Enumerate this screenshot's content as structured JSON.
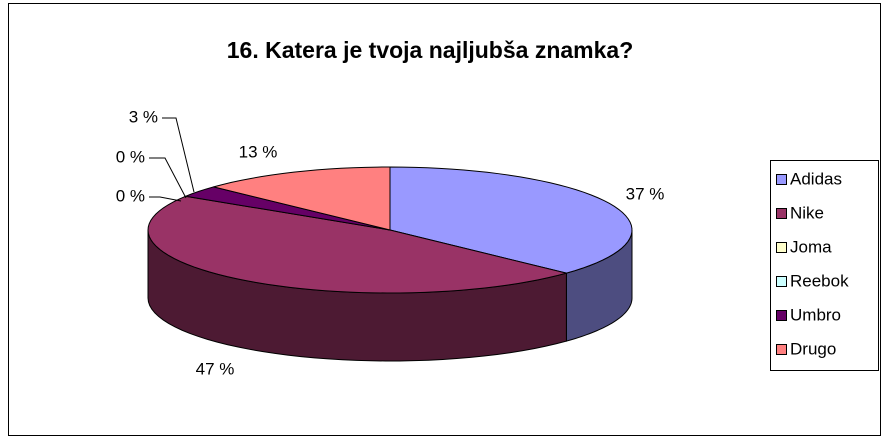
{
  "chart_data": {
    "type": "pie3d",
    "title": "16. Katera je tvoja najljubša znamka?",
    "categories": [
      "Adidas",
      "Nike",
      "Joma",
      "Reebok",
      "Umbro",
      "Drugo"
    ],
    "values": [
      37,
      47,
      0,
      0,
      3,
      13
    ],
    "value_labels": [
      "37 %",
      "47 %",
      "0 %",
      "0 %",
      "3 %",
      "13 %"
    ],
    "colors": [
      "#9999ff",
      "#993366",
      "#ffffcc",
      "#ccffff",
      "#660066",
      "#ff8080"
    ],
    "legend": "right"
  }
}
